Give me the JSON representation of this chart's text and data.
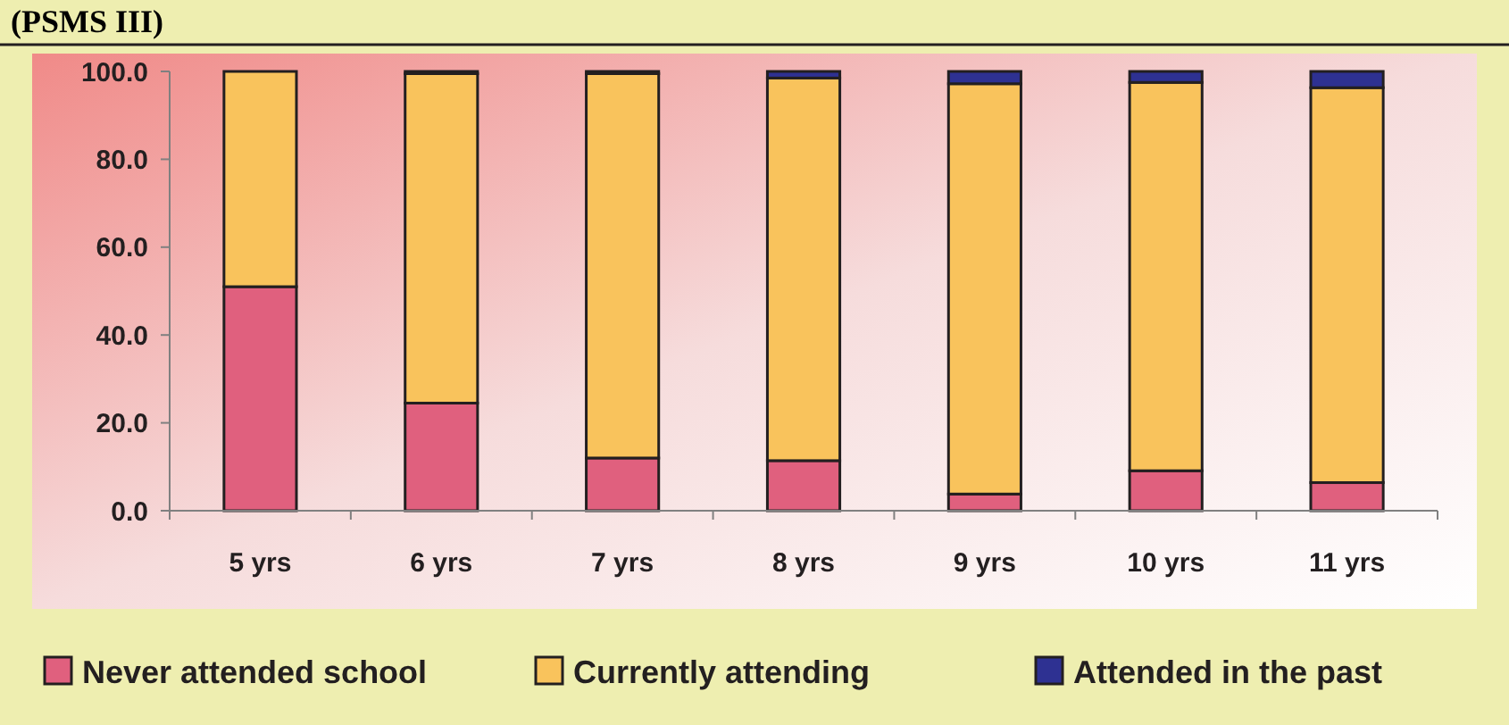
{
  "chart_data": {
    "type": "bar",
    "title": "(PSMS III)",
    "stacked": true,
    "categories": [
      "5 yrs",
      "6 yrs",
      "7 yrs",
      "8 yrs",
      "9 yrs",
      "10 yrs",
      "11 yrs"
    ],
    "series": [
      {
        "name": "Never attended school",
        "color": "#e0607e",
        "values": [
          51,
          24.5,
          12,
          11.4,
          3.8,
          9.1,
          6.4
        ]
      },
      {
        "name": "Currently attending",
        "color": "#f9c35c",
        "values": [
          49,
          75,
          87.5,
          87.1,
          93.4,
          88.4,
          89.9
        ]
      },
      {
        "name": "Attended in the past",
        "color": "#2e3192",
        "values": [
          0,
          0.5,
          0.5,
          1.5,
          2.8,
          2.5,
          3.7
        ]
      }
    ],
    "ylim": [
      0,
      100
    ],
    "yticks": [
      {
        "value": 0,
        "label": "0.0"
      },
      {
        "value": 20,
        "label": "20.0"
      },
      {
        "value": 40,
        "label": "40.0"
      },
      {
        "value": 60,
        "label": "60.0"
      },
      {
        "value": 80,
        "label": "80.0"
      },
      {
        "value": 100,
        "label": "100.0"
      }
    ],
    "grid": false,
    "legend": "bottom"
  }
}
